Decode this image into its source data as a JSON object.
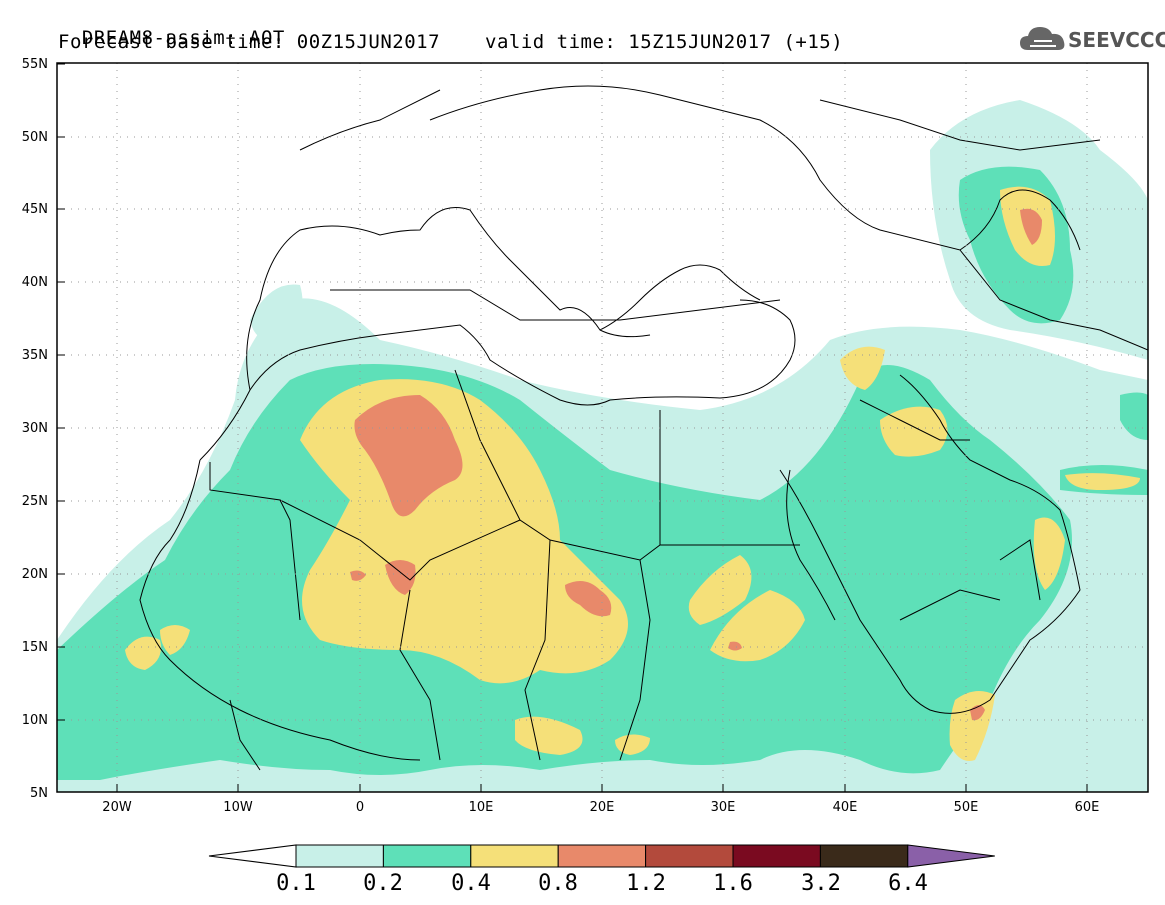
{
  "title": {
    "line1": "DREAM8-assim: AOT",
    "base_time": "Forecast base time: 00Z15JUN2017",
    "valid_time": "valid time: 15Z15JUN2017 (+15)"
  },
  "logo": {
    "text": "SEEVCCC",
    "icon": "cloud-icon"
  },
  "map": {
    "lon_range": [
      -25,
      65
    ],
    "lat_range": [
      5,
      55
    ],
    "lat_ticks": [
      "5N",
      "10N",
      "15N",
      "20N",
      "25N",
      "30N",
      "35N",
      "40N",
      "45N",
      "50N",
      "55N"
    ],
    "lon_ticks": [
      "20W",
      "10W",
      "0",
      "10E",
      "20E",
      "30E",
      "40E",
      "50E",
      "60E"
    ],
    "grid": true
  },
  "colorbar": {
    "labels": [
      "0.1",
      "0.2",
      "0.4",
      "0.8",
      "1.2",
      "1.6",
      "3.2",
      "6.4"
    ],
    "colors": [
      "#ffffff",
      "#c8f0e8",
      "#5ee0b8",
      "#f5e079",
      "#e8896a",
      "#b34a3c",
      "#7a0a20",
      "#3a2a1a",
      "#8a60a8"
    ]
  }
}
